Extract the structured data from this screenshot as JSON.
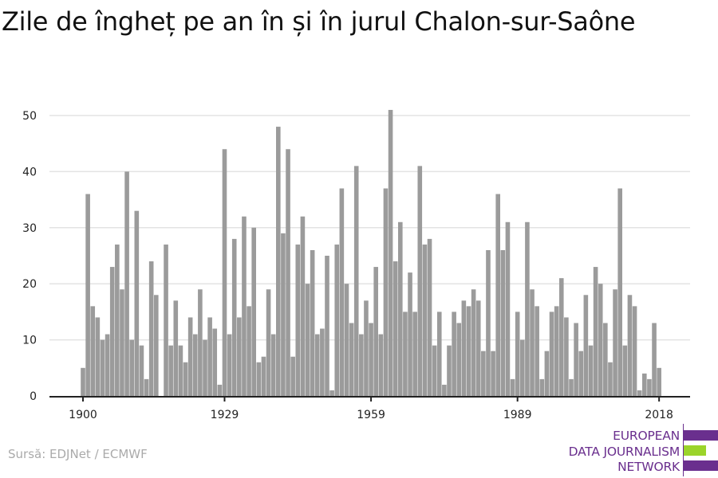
{
  "title": "Zile de îngheț pe an în și în jurul Chalon-sur-Saône",
  "source": "Sursă: EDJNet / ECMWF",
  "logo": {
    "lines": [
      "EUROPEAN",
      "DATA JOURNALISM",
      "NETWORK"
    ],
    "colors": {
      "purple": "#6a2f8e",
      "green": "#9bd42a"
    }
  },
  "chart_data": {
    "type": "bar",
    "title": "Zile de îngheț pe an în și în jurul Chalon-sur-Saône",
    "xlabel": "",
    "ylabel": "",
    "ylim": [
      0,
      50
    ],
    "yticks": [
      0,
      10,
      20,
      30,
      40,
      50
    ],
    "xticks": [
      1900,
      1929,
      1959,
      1989,
      2018
    ],
    "grid": true,
    "bar_color": "#9b9b9b",
    "start_year": 1900,
    "values": [
      5,
      36,
      16,
      14,
      10,
      11,
      23,
      27,
      19,
      40,
      10,
      33,
      9,
      3,
      24,
      18,
      0,
      27,
      9,
      17,
      9,
      6,
      14,
      11,
      19,
      10,
      14,
      12,
      2,
      44,
      11,
      28,
      14,
      32,
      16,
      30,
      6,
      7,
      19,
      11,
      48,
      29,
      44,
      7,
      27,
      32,
      20,
      26,
      11,
      12,
      25,
      1,
      27,
      37,
      20,
      13,
      41,
      11,
      17,
      13,
      23,
      11,
      37,
      51,
      24,
      31,
      15,
      22,
      15,
      41,
      27,
      28,
      9,
      15,
      2,
      9,
      15,
      13,
      17,
      16,
      19,
      17,
      8,
      26,
      8,
      36,
      26,
      31,
      3,
      15,
      10,
      31,
      19,
      16,
      3,
      8,
      15,
      16,
      21,
      14,
      3,
      13,
      8,
      18,
      9,
      23,
      20,
      13,
      6,
      19,
      37,
      9,
      18,
      16,
      1,
      4,
      3,
      13,
      5
    ]
  }
}
